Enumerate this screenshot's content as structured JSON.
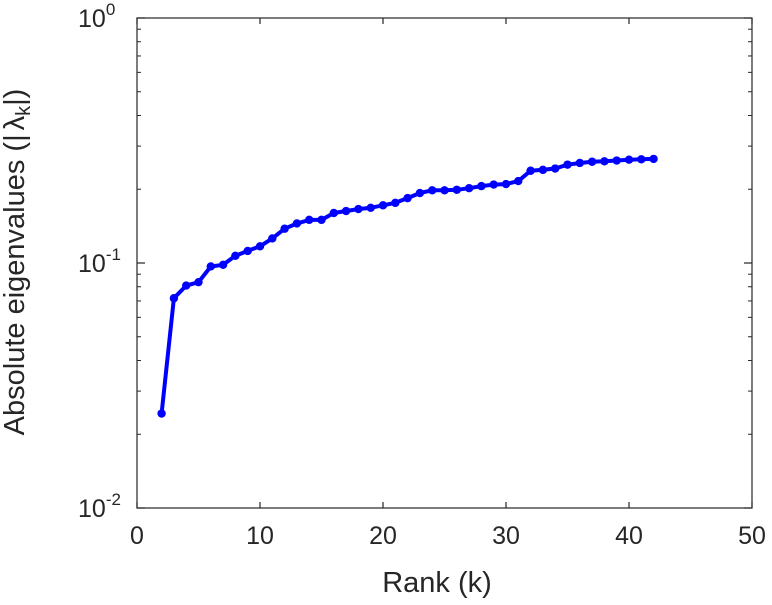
{
  "chart_data": {
    "type": "line",
    "title": "",
    "xlabel": "Rank (k)",
    "ylabel": "Absolute eigenvalues (|λk|)",
    "ylabel_parts": {
      "text": "Absolute eigenvalues (|",
      "symbol": "λ",
      "subscript": "k",
      "close": "|)"
    },
    "xlim": [
      0,
      50
    ],
    "ylim": [
      0.01,
      1
    ],
    "yscale": "log",
    "grid": false,
    "x_ticks": [
      {
        "value": 0,
        "label": "0"
      },
      {
        "value": 10,
        "label": "10"
      },
      {
        "value": 20,
        "label": "20"
      },
      {
        "value": 30,
        "label": "30"
      },
      {
        "value": 40,
        "label": "40"
      },
      {
        "value": 50,
        "label": "50"
      }
    ],
    "y_ticks": [
      {
        "value": 0.01,
        "base": "10",
        "exp": "-2"
      },
      {
        "value": 0.1,
        "base": "10",
        "exp": "-1"
      },
      {
        "value": 1,
        "base": "10",
        "exp": "0"
      }
    ],
    "series": [
      {
        "color": "#0000ff",
        "marker": "circle",
        "x": [
          2,
          3,
          4,
          5,
          6,
          7,
          8,
          9,
          10,
          11,
          12,
          13,
          14,
          15,
          16,
          17,
          18,
          19,
          20,
          21,
          22,
          23,
          24,
          25,
          26,
          27,
          28,
          29,
          30,
          31,
          32,
          33,
          34,
          35,
          36,
          37,
          38,
          39,
          40,
          41,
          42
        ],
        "y": [
          0.0243,
          0.0718,
          0.0809,
          0.0835,
          0.0968,
          0.0983,
          0.107,
          0.112,
          0.117,
          0.126,
          0.138,
          0.145,
          0.15,
          0.15,
          0.16,
          0.163,
          0.166,
          0.168,
          0.172,
          0.176,
          0.184,
          0.193,
          0.198,
          0.198,
          0.199,
          0.202,
          0.206,
          0.209,
          0.21,
          0.216,
          0.238,
          0.24,
          0.243,
          0.252,
          0.256,
          0.259,
          0.26,
          0.262,
          0.264,
          0.265,
          0.266
        ]
      }
    ]
  }
}
